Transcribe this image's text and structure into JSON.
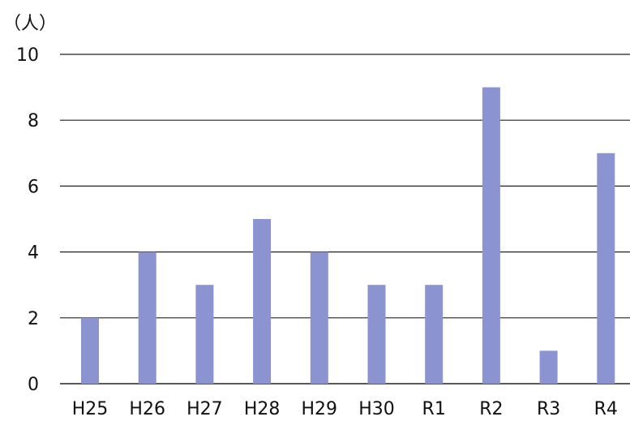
{
  "chart_data": {
    "type": "bar",
    "unit_label": "（人）",
    "categories": [
      "H25",
      "H26",
      "H27",
      "H28",
      "H29",
      "H30",
      "R1",
      "R2",
      "R3",
      "R4"
    ],
    "values": [
      2,
      4,
      3,
      5,
      4,
      3,
      3,
      9,
      1,
      7
    ],
    "ylim": [
      0,
      10
    ],
    "yticks": [
      0,
      2,
      4,
      6,
      8,
      10
    ],
    "grid": true,
    "legend": "none",
    "bar_color": "#8b93d1",
    "grid_color": "#222222"
  }
}
